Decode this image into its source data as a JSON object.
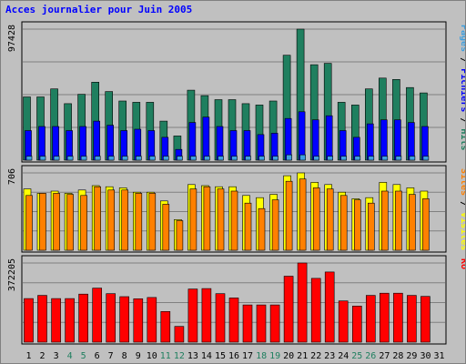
{
  "chart_data": {
    "type": "bar",
    "title": "Acces journalier pour Juin 2005",
    "categories": [
      "1",
      "2",
      "3",
      "4",
      "5",
      "6",
      "7",
      "8",
      "9",
      "10",
      "11",
      "12",
      "13",
      "14",
      "15",
      "16",
      "17",
      "18",
      "19",
      "20",
      "21",
      "22",
      "23",
      "24",
      "25",
      "26",
      "27",
      "28",
      "29",
      "30",
      "31"
    ],
    "weekend_days": [
      "4",
      "5",
      "11",
      "12",
      "18",
      "19",
      "25",
      "26"
    ],
    "panels": [
      {
        "max_label": "97428",
        "ymax": 97428,
        "right_labels": [
          {
            "text": "Pages",
            "color": "#3f9fdf"
          },
          {
            "text": " / ",
            "color": "#000000"
          },
          {
            "text": "Fichiers",
            "color": "#0000ff"
          },
          {
            "text": " / ",
            "color": "#000000"
          },
          {
            "text": "Hits",
            "color": "#1f7f5f"
          }
        ],
        "series": [
          {
            "name": "Hits",
            "color": "#1f7f5f",
            "values": [
              47000,
              47000,
              53000,
              42000,
              49000,
              58000,
              51000,
              44000,
              43000,
              43000,
              29000,
              18000,
              52000,
              48000,
              45000,
              45000,
              42000,
              41000,
              44000,
              78000,
              97428,
              71000,
              72000,
              43000,
              41000,
              53000,
              61000,
              60000,
              54000,
              50000,
              0
            ]
          },
          {
            "name": "Fichiers",
            "color": "#0000ff",
            "values": [
              22000,
              25000,
              25000,
              22000,
              25000,
              29000,
              26000,
              22000,
              23000,
              22000,
              17000,
              8000,
              28000,
              32000,
              25000,
              22000,
              22000,
              19000,
              20000,
              31000,
              36000,
              30000,
              33000,
              22000,
              17000,
              27000,
              30000,
              30000,
              28000,
              25000,
              0
            ]
          },
          {
            "name": "Pages",
            "color": "#3f9fdf",
            "values": [
              3000,
              3000,
              3000,
              3000,
              3000,
              3000,
              3000,
              3000,
              3000,
              3000,
              3000,
              3000,
              3000,
              3000,
              3000,
              3000,
              3000,
              3000,
              3000,
              4000,
              4000,
              3000,
              3000,
              3000,
              3000,
              3000,
              3000,
              3000,
              3000,
              3000,
              0
            ]
          }
        ]
      },
      {
        "max_label": "706",
        "ymax": 706,
        "right_labels": [
          {
            "text": "Sites",
            "color": "#ff8000"
          },
          {
            "text": " / ",
            "color": "#000000"
          },
          {
            "text": "Visites",
            "color": "#ffff00"
          }
        ],
        "series": [
          {
            "name": "Visites",
            "color": "#ffff00",
            "values": [
              560,
              520,
              540,
              520,
              550,
              590,
              580,
              570,
              530,
              530,
              450,
              280,
              600,
              590,
              580,
              580,
              500,
              480,
              510,
              680,
              706,
              620,
              600,
              530,
              470,
              480,
              620,
              600,
              570,
              540,
              0
            ]
          },
          {
            "name": "Sites",
            "color": "#ff8000",
            "values": [
              500,
              520,
              520,
              510,
              500,
              580,
              550,
              550,
              520,
              520,
              420,
              270,
              560,
              580,
              560,
              540,
              430,
              380,
              460,
              630,
              650,
              570,
              560,
              500,
              460,
              430,
              540,
              540,
              510,
              470,
              0
            ]
          }
        ]
      },
      {
        "max_label": "372205",
        "ymax": 372205,
        "right_labels": [
          {
            "text": "Ko",
            "color": "#ff0000"
          }
        ],
        "series": [
          {
            "name": "Ko",
            "color": "#ff0000",
            "values": [
              205000,
              220000,
              205000,
              205000,
              226000,
              254000,
              228000,
              214000,
              204000,
              210000,
              144000,
              74000,
              250000,
              252000,
              228000,
              208000,
              175000,
              175000,
              175000,
              310000,
              372205,
              300000,
              330000,
              194000,
              170000,
              220000,
              230000,
              230000,
              220000,
              215000,
              0
            ]
          }
        ]
      }
    ]
  }
}
